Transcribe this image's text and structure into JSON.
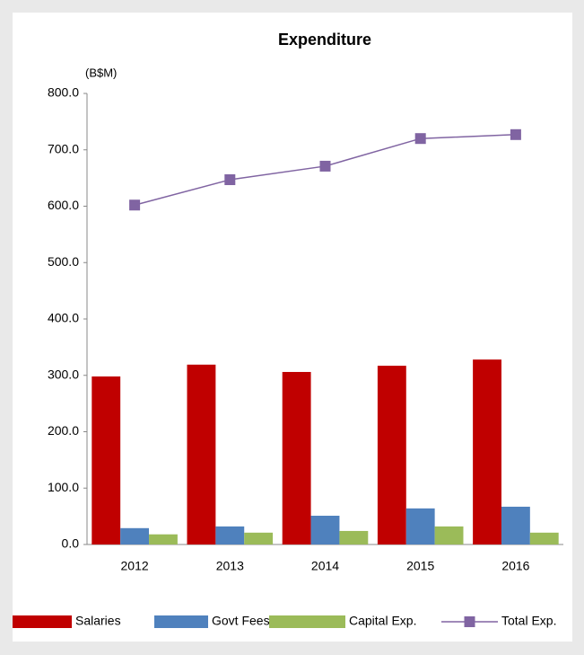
{
  "chart_data": {
    "type": "bar",
    "title": "Expenditure",
    "y_label": "(B$M)",
    "categories": [
      "2012",
      "2013",
      "2014",
      "2015",
      "2016"
    ],
    "series": [
      {
        "name": "Salaries",
        "color": "#c00000",
        "values": [
          298,
          319,
          306,
          317,
          328
        ]
      },
      {
        "name": "Govt Fees",
        "color": "#4f81bd",
        "values": [
          29,
          32,
          51,
          64,
          67
        ]
      },
      {
        "name": "Capital Exp.",
        "color": "#9bbb59",
        "values": [
          18,
          21,
          24,
          32,
          21
        ]
      },
      {
        "name": "Total Exp.",
        "color": "#8064a2",
        "type": "line",
        "values": [
          602,
          647,
          671,
          720,
          727
        ]
      }
    ],
    "ylim": [
      0,
      800
    ],
    "yticks": [
      {
        "value": 0,
        "label": "0.0"
      },
      {
        "value": 100,
        "label": "100.0"
      },
      {
        "value": 200,
        "label": "200.0"
      },
      {
        "value": 300,
        "label": "300.0"
      },
      {
        "value": 400,
        "label": "400.0"
      },
      {
        "value": 500,
        "label": "500.0"
      },
      {
        "value": 600,
        "label": "600.0"
      },
      {
        "value": 700,
        "label": "700.0"
      },
      {
        "value": 800,
        "label": "800.0"
      }
    ],
    "grid": false,
    "legend": "bottom"
  }
}
